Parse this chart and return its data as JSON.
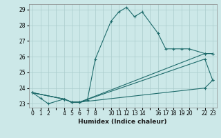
{
  "xlabel": "Humidex (Indice chaleur)",
  "background_color": "#cce8e8",
  "grid_color": "#aacccc",
  "line_color": "#1e6b6b",
  "xlim": [
    -0.5,
    23.5
  ],
  "ylim": [
    22.75,
    29.35
  ],
  "yticks": [
    23,
    24,
    25,
    26,
    27,
    28,
    29
  ],
  "xtick_positions": [
    0,
    1,
    2,
    3,
    4,
    5,
    6,
    7,
    8,
    9,
    10,
    11,
    12,
    13,
    14,
    15,
    16,
    17,
    18,
    19,
    20,
    21,
    22,
    23
  ],
  "xtick_labels": [
    "0",
    "1",
    "2",
    "",
    "4",
    "5",
    "6",
    "7",
    "8",
    "",
    "10",
    "11",
    "12",
    "13",
    "14",
    "",
    "16",
    "17",
    "18",
    "19",
    "20",
    "",
    "22",
    "23"
  ],
  "series": [
    {
      "x": [
        0,
        1,
        2,
        4,
        5,
        6,
        7,
        8,
        10,
        11,
        12,
        13,
        14,
        16,
        17,
        18,
        19,
        20,
        22,
        23
      ],
      "y": [
        23.7,
        23.35,
        23.0,
        23.3,
        23.1,
        23.1,
        23.25,
        25.85,
        28.25,
        28.85,
        29.15,
        28.55,
        28.85,
        27.5,
        26.5,
        26.5,
        26.5,
        26.5,
        26.2,
        26.2
      ],
      "marker": true
    },
    {
      "x": [
        0,
        4,
        5,
        6,
        22,
        23
      ],
      "y": [
        23.7,
        23.3,
        23.1,
        23.1,
        26.2,
        26.2
      ],
      "marker": true
    },
    {
      "x": [
        0,
        4,
        5,
        6,
        22,
        23
      ],
      "y": [
        23.7,
        23.3,
        23.1,
        23.1,
        25.85,
        24.5
      ],
      "marker": true
    },
    {
      "x": [
        0,
        4,
        5,
        6,
        22,
        23
      ],
      "y": [
        23.7,
        23.3,
        23.1,
        23.1,
        24.0,
        24.5
      ],
      "marker": true
    }
  ]
}
